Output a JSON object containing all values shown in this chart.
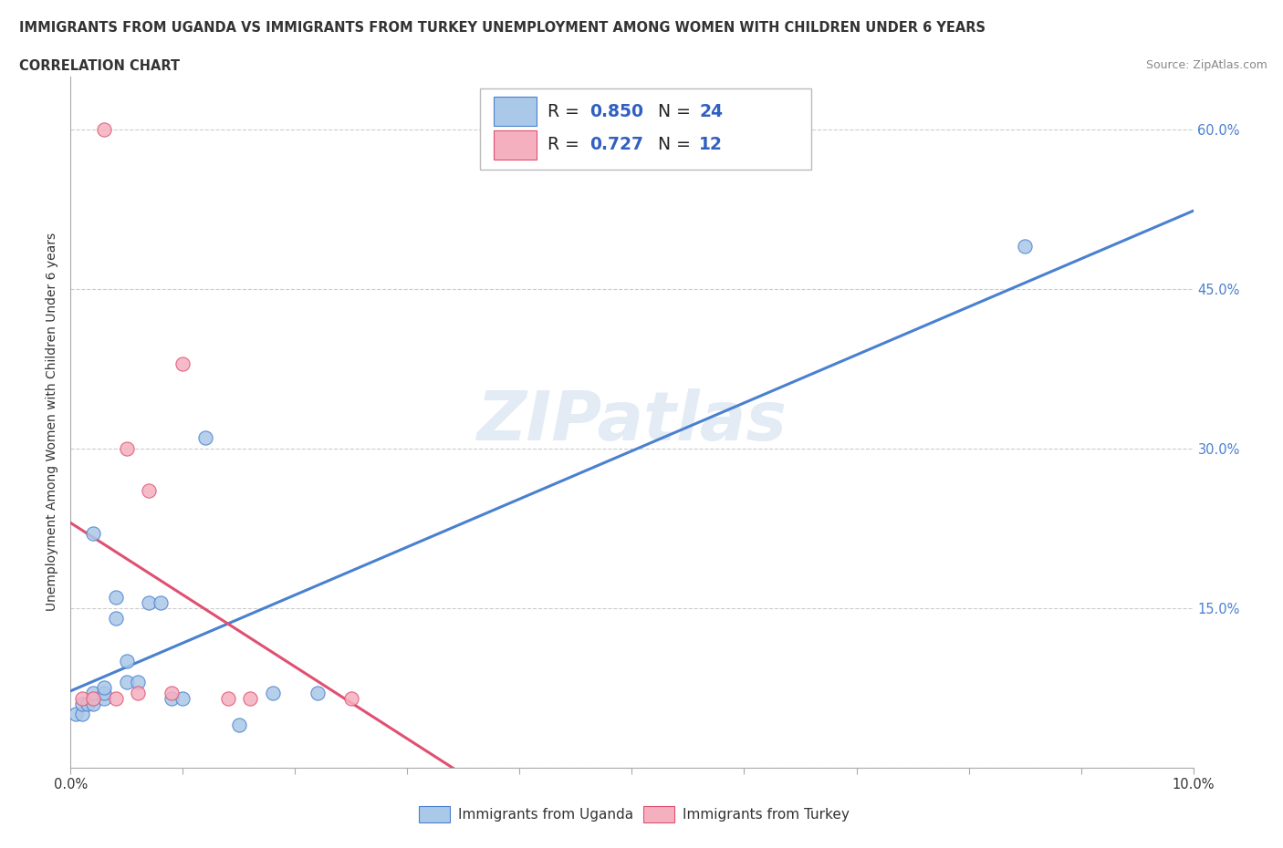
{
  "title_line1": "IMMIGRANTS FROM UGANDA VS IMMIGRANTS FROM TURKEY UNEMPLOYMENT AMONG WOMEN WITH CHILDREN UNDER 6 YEARS",
  "title_line2": "CORRELATION CHART",
  "source_text": "Source: ZipAtlas.com",
  "ylabel": "Unemployment Among Women with Children Under 6 years",
  "xlim": [
    0.0,
    0.1
  ],
  "ylim": [
    0.0,
    0.65
  ],
  "xticks": [
    0.0,
    0.01,
    0.02,
    0.03,
    0.04,
    0.05,
    0.06,
    0.07,
    0.08,
    0.09,
    0.1
  ],
  "xticklabels": [
    "0.0%",
    "",
    "",
    "",
    "",
    "",
    "",
    "",
    "",
    "",
    "10.0%"
  ],
  "yticks": [
    0.0,
    0.15,
    0.3,
    0.45,
    0.6
  ],
  "yticklabels": [
    "",
    "15.0%",
    "30.0%",
    "45.0%",
    "60.0%"
  ],
  "uganda_color": "#aac8e8",
  "turkey_color": "#f5b0c0",
  "uganda_line_color": "#4a80d0",
  "turkey_line_color": "#e05070",
  "uganda_r": 0.85,
  "uganda_n": 24,
  "turkey_r": 0.727,
  "turkey_n": 12,
  "watermark": "ZIPatlas",
  "uganda_x": [
    0.0005,
    0.001,
    0.001,
    0.0015,
    0.002,
    0.002,
    0.002,
    0.003,
    0.003,
    0.003,
    0.004,
    0.004,
    0.005,
    0.005,
    0.006,
    0.007,
    0.008,
    0.009,
    0.01,
    0.012,
    0.015,
    0.018,
    0.022,
    0.085
  ],
  "uganda_y": [
    0.05,
    0.05,
    0.06,
    0.06,
    0.06,
    0.07,
    0.22,
    0.065,
    0.07,
    0.075,
    0.14,
    0.16,
    0.08,
    0.1,
    0.08,
    0.155,
    0.155,
    0.065,
    0.065,
    0.31,
    0.04,
    0.07,
    0.07,
    0.49
  ],
  "turkey_x": [
    0.001,
    0.002,
    0.003,
    0.004,
    0.005,
    0.006,
    0.007,
    0.009,
    0.01,
    0.014,
    0.016,
    0.025
  ],
  "turkey_y": [
    0.065,
    0.065,
    0.6,
    0.065,
    0.3,
    0.07,
    0.26,
    0.07,
    0.38,
    0.065,
    0.065,
    0.065
  ],
  "grid_color": "#cccccc",
  "background_color": "#ffffff",
  "ytick_color": "#4a80d0",
  "title_color": "#333333",
  "source_color": "#888888"
}
